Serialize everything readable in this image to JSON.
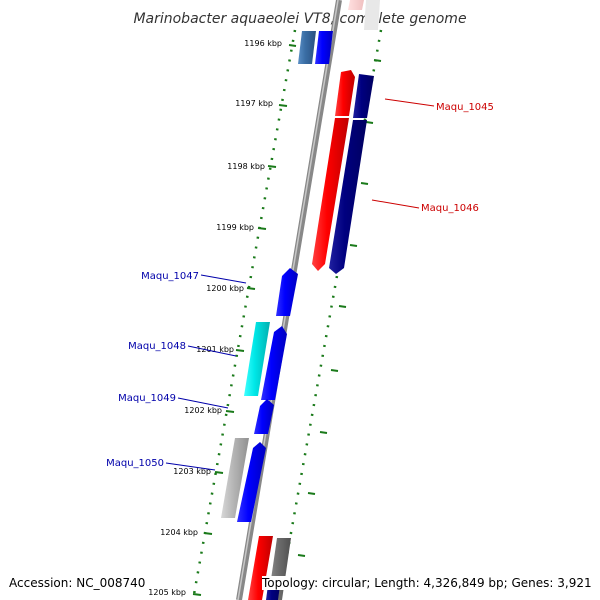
{
  "title": "Marinobacter aquaeolei VT8, complete genome",
  "footer": {
    "accession": "Accession: NC_008740",
    "summary": "Topology: circular; Length: 4,326,849 bp; Genes: 3,921"
  },
  "ticks": [
    "1196 kbp",
    "1197 kbp",
    "1198 kbp",
    "1199 kbp",
    "1200 kbp",
    "1201 kbp",
    "1202 kbp",
    "1203 kbp",
    "1204 kbp",
    "1205 kbp"
  ],
  "gene_labels": [
    {
      "text": "Maqu_1045",
      "color": "#cc0000"
    },
    {
      "text": "Maqu_1046",
      "color": "#cc0000"
    },
    {
      "text": "Maqu_1047",
      "color": "#0000aa"
    },
    {
      "text": "Maqu_1048",
      "color": "#0000aa"
    },
    {
      "text": "Maqu_1049",
      "color": "#0000aa"
    },
    {
      "text": "Maqu_1050",
      "color": "#0000aa"
    }
  ],
  "colors": {
    "backbone": "#888888",
    "tick_marks": "#1a7a1a",
    "forward_strand": "#ff0000",
    "forward_strand_dark": "#000080",
    "reverse_strand": "#0000ff",
    "reverse_cyan": "#00e0e0",
    "reverse_steel": "#3a6ea5",
    "gray_gene": "#b0b0b0",
    "dark_gray_gene": "#707070"
  }
}
